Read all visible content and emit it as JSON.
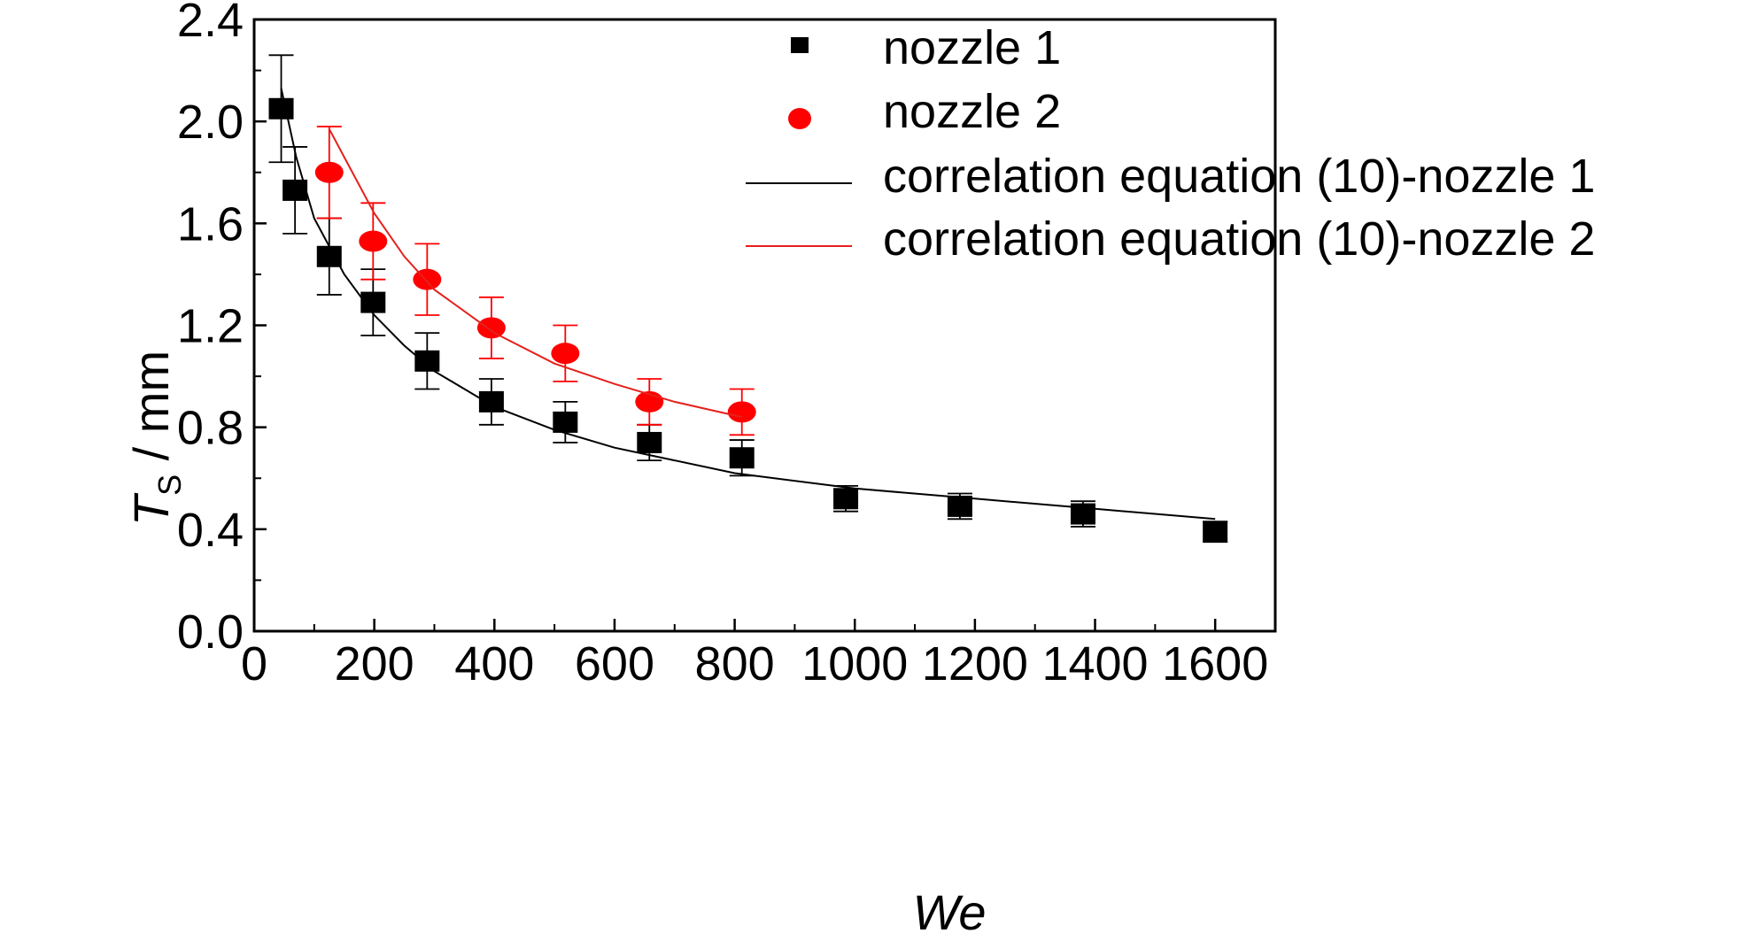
{
  "chart_data": {
    "type": "scatter",
    "title": "",
    "xlabel": "We",
    "ylabel_main": "T",
    "ylabel_sub": "S",
    "ylabel_unit": " / mm",
    "xlim": [
      0,
      1700
    ],
    "ylim": [
      0.0,
      2.4
    ],
    "x_ticks": [
      0,
      200,
      400,
      600,
      800,
      1000,
      1200,
      1400,
      1600
    ],
    "x_tick_labels": [
      "0",
      "200",
      "400",
      "600",
      "800",
      "1000",
      "1200",
      "1400",
      "1600"
    ],
    "y_ticks": [
      0.0,
      0.4,
      0.8,
      1.2,
      1.6,
      2.0,
      2.4
    ],
    "y_tick_labels": [
      "0.0",
      "0.4",
      "0.8",
      "1.2",
      "1.6",
      "2.0",
      "2.4"
    ],
    "legend_position": "top-right",
    "grid": false,
    "series": [
      {
        "name": "nozzle 1",
        "kind": "points",
        "marker": "square",
        "color": "#000000",
        "points": [
          {
            "x": 45,
            "y": 2.05,
            "err": 0.21
          },
          {
            "x": 68,
            "y": 1.73,
            "err": 0.17
          },
          {
            "x": 125,
            "y": 1.47,
            "err": 0.15
          },
          {
            "x": 198,
            "y": 1.29,
            "err": 0.13
          },
          {
            "x": 288,
            "y": 1.06,
            "err": 0.11
          },
          {
            "x": 395,
            "y": 0.9,
            "err": 0.09
          },
          {
            "x": 518,
            "y": 0.82,
            "err": 0.08
          },
          {
            "x": 658,
            "y": 0.74,
            "err": 0.07
          },
          {
            "x": 812,
            "y": 0.68,
            "err": 0.07
          },
          {
            "x": 985,
            "y": 0.52,
            "err": 0.05
          },
          {
            "x": 1175,
            "y": 0.49,
            "err": 0.05
          },
          {
            "x": 1380,
            "y": 0.46,
            "err": 0.05
          },
          {
            "x": 1600,
            "y": 0.39,
            "err": 0.04
          }
        ]
      },
      {
        "name": "nozzle 2",
        "kind": "points",
        "marker": "circle",
        "color": "#ff0000",
        "points": [
          {
            "x": 125,
            "y": 1.8,
            "err": 0.18
          },
          {
            "x": 198,
            "y": 1.53,
            "err": 0.15
          },
          {
            "x": 288,
            "y": 1.38,
            "err": 0.14
          },
          {
            "x": 395,
            "y": 1.19,
            "err": 0.12
          },
          {
            "x": 518,
            "y": 1.09,
            "err": 0.11
          },
          {
            "x": 658,
            "y": 0.9,
            "err": 0.09
          },
          {
            "x": 812,
            "y": 0.86,
            "err": 0.09
          }
        ]
      },
      {
        "name": "correlation equation (10)-nozzle 1",
        "kind": "line",
        "color": "#000000",
        "points": [
          {
            "x": 45,
            "y": 2.13
          },
          {
            "x": 70,
            "y": 1.86
          },
          {
            "x": 100,
            "y": 1.62
          },
          {
            "x": 150,
            "y": 1.4
          },
          {
            "x": 200,
            "y": 1.24
          },
          {
            "x": 250,
            "y": 1.12
          },
          {
            "x": 300,
            "y": 1.02
          },
          {
            "x": 400,
            "y": 0.88
          },
          {
            "x": 500,
            "y": 0.79
          },
          {
            "x": 600,
            "y": 0.72
          },
          {
            "x": 700,
            "y": 0.67
          },
          {
            "x": 800,
            "y": 0.62
          },
          {
            "x": 1000,
            "y": 0.56
          },
          {
            "x": 1200,
            "y": 0.52
          },
          {
            "x": 1400,
            "y": 0.48
          },
          {
            "x": 1600,
            "y": 0.44
          }
        ]
      },
      {
        "name": "correlation equation (10)-nozzle 2",
        "kind": "line",
        "color": "#e4211c",
        "points": [
          {
            "x": 125,
            "y": 1.97
          },
          {
            "x": 150,
            "y": 1.86
          },
          {
            "x": 200,
            "y": 1.64
          },
          {
            "x": 250,
            "y": 1.47
          },
          {
            "x": 300,
            "y": 1.34
          },
          {
            "x": 400,
            "y": 1.17
          },
          {
            "x": 500,
            "y": 1.05
          },
          {
            "x": 600,
            "y": 0.97
          },
          {
            "x": 700,
            "y": 0.9
          },
          {
            "x": 812,
            "y": 0.84
          }
        ]
      }
    ]
  }
}
